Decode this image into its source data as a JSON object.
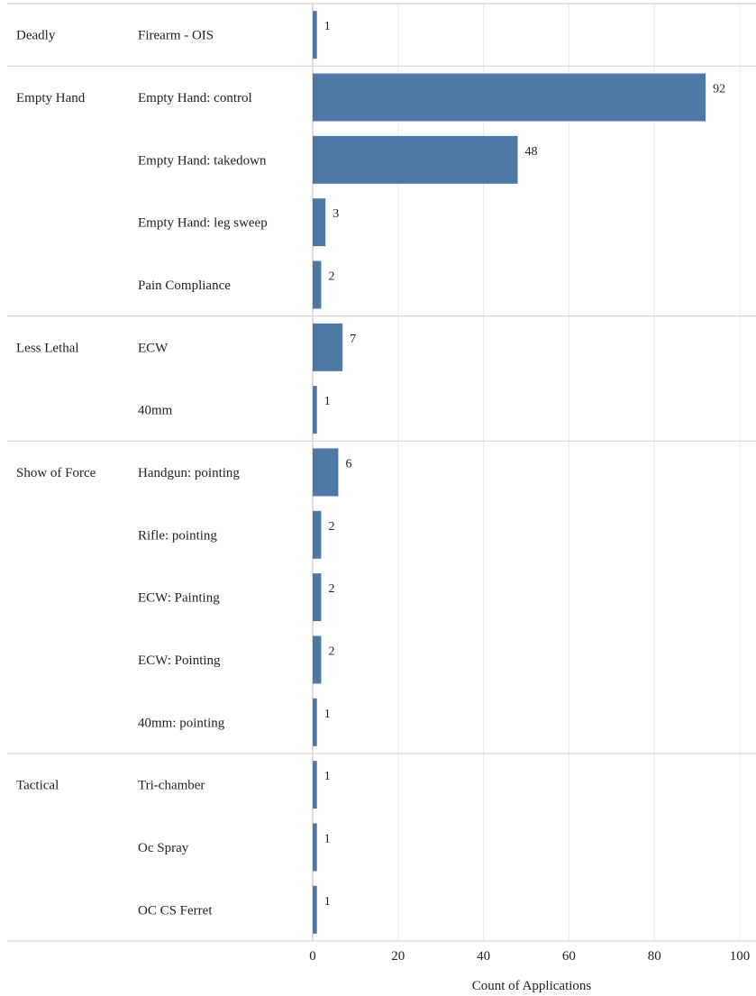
{
  "chart_data": {
    "type": "bar",
    "orientation": "horizontal",
    "title": "",
    "xlabel": "Count of Applications",
    "ylabel": "",
    "xlim": [
      0,
      100
    ],
    "xticks": [
      0,
      20,
      40,
      60,
      80,
      100
    ],
    "grid": true,
    "legend": "none",
    "bar_color": "#4e79a7",
    "groups": [
      {
        "name": "Deadly",
        "items": [
          {
            "category": "Firearm - OIS",
            "value": 1
          }
        ]
      },
      {
        "name": "Empty Hand",
        "items": [
          {
            "category": "Empty Hand: control",
            "value": 92
          },
          {
            "category": "Empty Hand: takedown",
            "value": 48
          },
          {
            "category": "Empty Hand: leg sweep",
            "value": 3
          },
          {
            "category": "Pain Compliance",
            "value": 2
          }
        ]
      },
      {
        "name": "Less Lethal",
        "items": [
          {
            "category": "ECW",
            "value": 7
          },
          {
            "category": "40mm",
            "value": 1
          }
        ]
      },
      {
        "name": "Show of Force",
        "items": [
          {
            "category": "Handgun: pointing",
            "value": 6
          },
          {
            "category": "Rifle: pointing",
            "value": 2
          },
          {
            "category": "ECW: Painting",
            "value": 2
          },
          {
            "category": "ECW: Pointing",
            "value": 2
          },
          {
            "category": "40mm: pointing",
            "value": 1
          }
        ]
      },
      {
        "name": "Tactical",
        "items": [
          {
            "category": "Tri-chamber",
            "value": 1
          },
          {
            "category": "Oc Spray",
            "value": 1
          },
          {
            "category": "OC CS Ferret",
            "value": 1
          }
        ]
      }
    ]
  }
}
